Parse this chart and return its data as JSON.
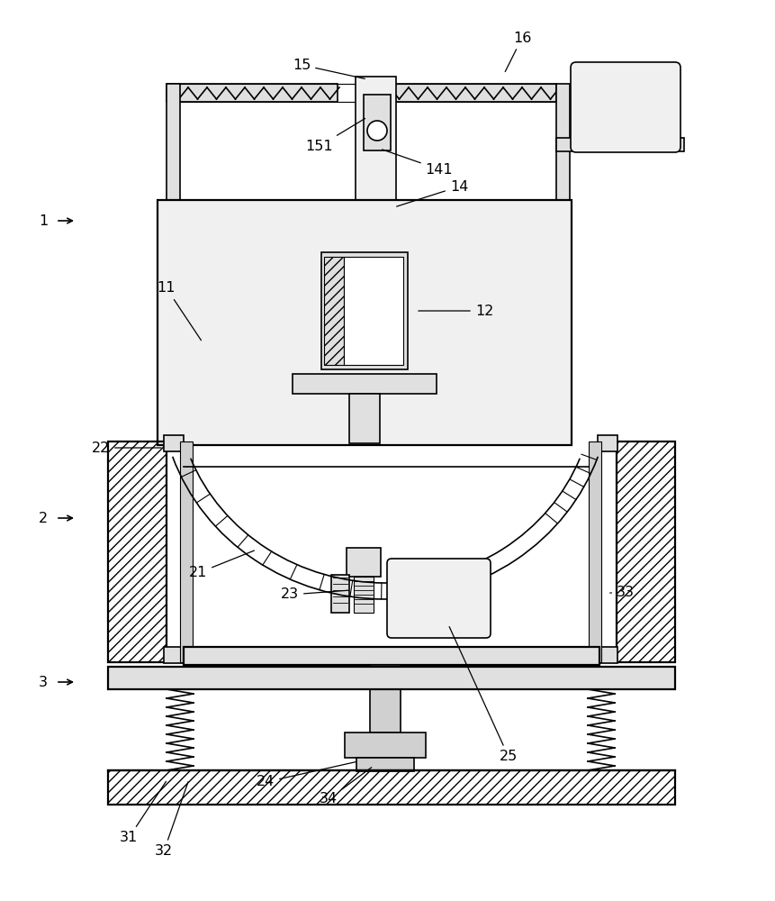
{
  "bg_color": "#ffffff",
  "lc": "#000000",
  "gray1": "#f0f0f0",
  "gray2": "#e0e0e0",
  "gray3": "#d0d0d0",
  "gray4": "#c8c8c8"
}
